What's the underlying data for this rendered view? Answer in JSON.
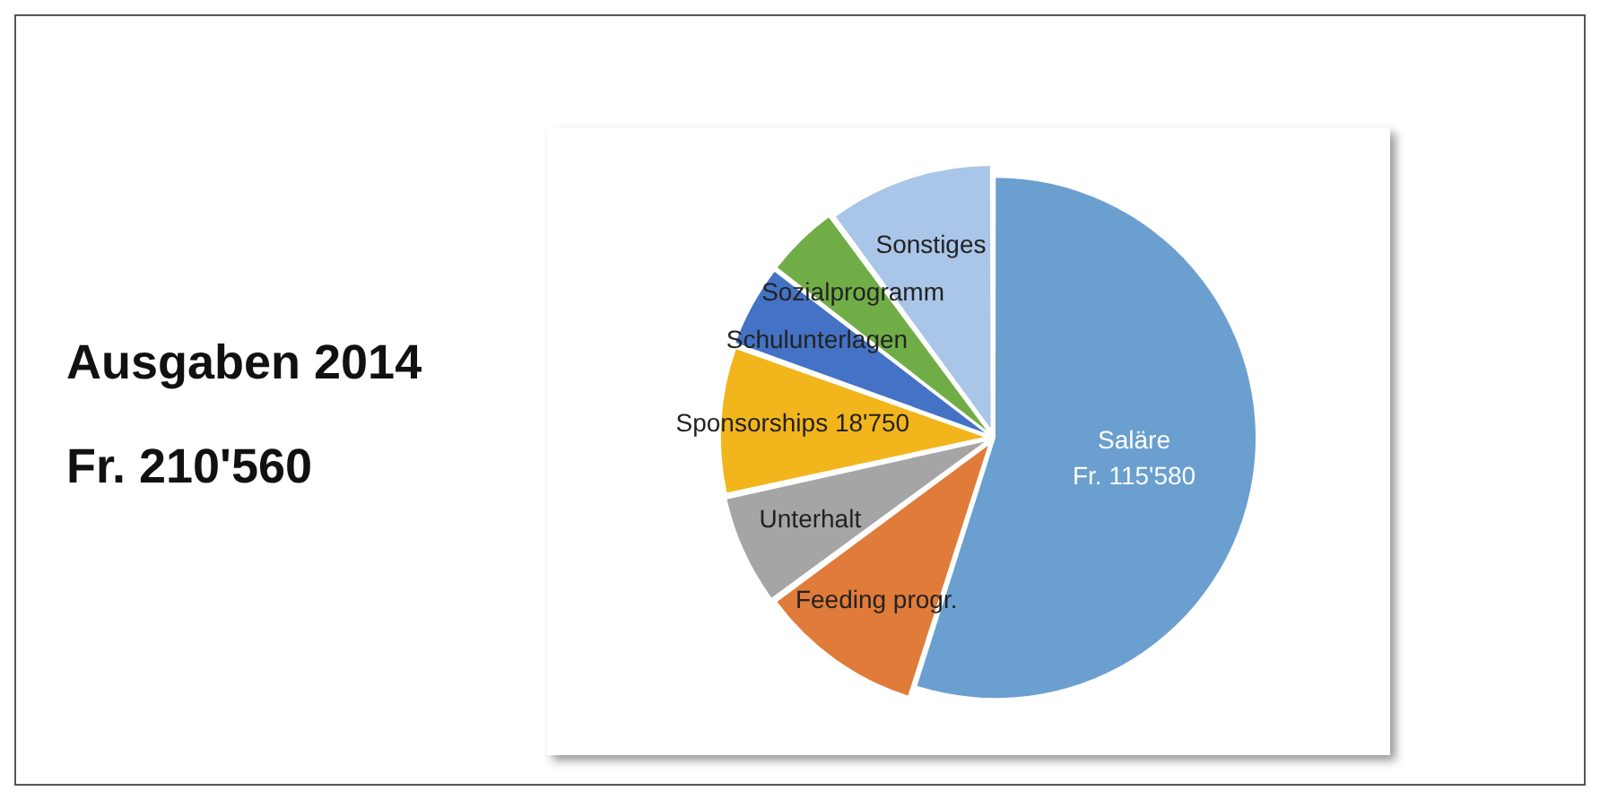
{
  "chart_data": {
    "type": "pie",
    "title": "Ausgaben 2014",
    "subtitle": "Fr. 210'560",
    "categories": [
      "Saläre",
      "Feeding progr.",
      "Unterhalt",
      "Sponsorships",
      "Schulunterlagen",
      "Sozialprogramm",
      "Sonstiges"
    ],
    "values": [
      115580,
      21060,
      14040,
      18750,
      10530,
      9360,
      21240
    ],
    "value_labels": [
      "Fr. 115'580",
      null,
      null,
      "18'750",
      null,
      null,
      null
    ],
    "colors": [
      "#6a9fd0",
      "#e07b39",
      "#a5a5a5",
      "#f2b51c",
      "#4472c4",
      "#70ad47",
      "#a9c5e8"
    ],
    "legend": false
  }
}
